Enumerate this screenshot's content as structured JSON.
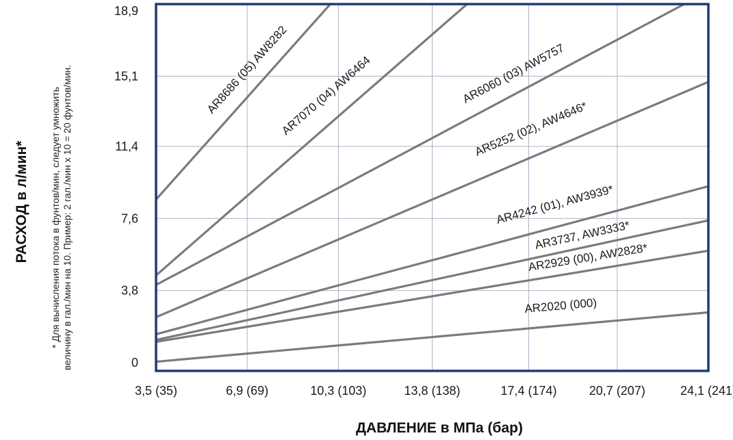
{
  "chart_data": {
    "type": "line",
    "xlabel": "ДАВЛЕНИЕ в МПа (бар)",
    "ylabel": "РАСХОД в л/мин*",
    "footnote": [
      "* Для вычисления потока в фунтов/мин, следует умножить",
      "величину в гал./мин на 10. Пример: 2 гал./мин x 10 = 20 фунтов/мин."
    ],
    "x_ticks": [
      "3,5 (35)",
      "6,9 (69)",
      "10,3 (103)",
      "13,8 (138)",
      "17,4 (174)",
      "20,7 (207)",
      "24,1 (241)"
    ],
    "x_tick_values": [
      3.5,
      6.9,
      10.3,
      13.8,
      17.4,
      20.7,
      24.1
    ],
    "y_ticks": [
      "0",
      "3,8",
      "7,6",
      "11,4",
      "15,1",
      "18,9"
    ],
    "y_tick_values": [
      0,
      3.8,
      7.6,
      11.4,
      15.1,
      18.9
    ],
    "xlim": [
      3.5,
      24.1
    ],
    "ylim": [
      0,
      18.9
    ],
    "grid": true,
    "colors": {
      "frame": "#1f3a7a",
      "grid": "#a9b4c6",
      "series": "#7b7b7b"
    },
    "series": [
      {
        "name": "AR8686 (05) AW8282",
        "x": [
          3.5,
          10.0
        ],
        "y": [
          8.6,
          18.9
        ]
      },
      {
        "name": "AR7070 (04) AW6464",
        "x": [
          3.5,
          15.1
        ],
        "y": [
          4.6,
          18.9
        ]
      },
      {
        "name": "AR6060 (03) AW5757",
        "x": [
          3.5,
          23.2
        ],
        "y": [
          4.1,
          18.9
        ]
      },
      {
        "name": "AR5252 (02), AW4646*",
        "x": [
          3.5,
          24.1
        ],
        "y": [
          2.4,
          14.8
        ]
      },
      {
        "name": "AR4242 (01), AW3939*",
        "x": [
          3.5,
          24.1
        ],
        "y": [
          1.5,
          9.3
        ]
      },
      {
        "name": "AR3737, AW3333*",
        "x": [
          3.5,
          24.1
        ],
        "y": [
          1.2,
          7.5
        ]
      },
      {
        "name": "AR2929 (00), AW2828*",
        "x": [
          3.5,
          24.1
        ],
        "y": [
          1.1,
          5.9
        ]
      },
      {
        "name": "AR2020 (000)",
        "x": [
          3.5,
          24.1
        ],
        "y": [
          0.05,
          2.65
        ]
      }
    ]
  }
}
